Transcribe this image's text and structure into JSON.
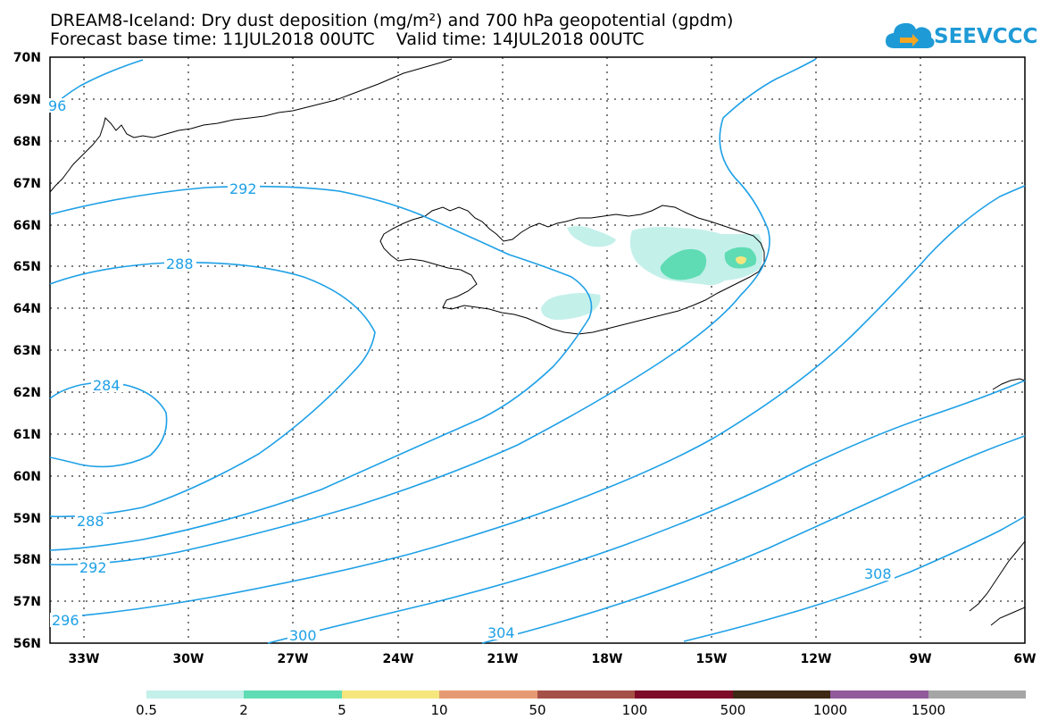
{
  "title": {
    "line1": "DREAM8-Iceland: Dry dust deposition (mg/m²) and 700 hPa geopotential (gpdm)",
    "line2": "Forecast base time: 11JUL2018 00UTC    Valid time: 14JUL2018 00UTC"
  },
  "logo": {
    "text": "SEEVCCC",
    "color": "#1e9ad6"
  },
  "map": {
    "lat_labels": [
      "70N",
      "69N",
      "68N",
      "67N",
      "66N",
      "65N",
      "64N",
      "63N",
      "62N",
      "61N",
      "60N",
      "59N",
      "58N",
      "57N",
      "56N"
    ],
    "lon_labels": [
      "33W",
      "30W",
      "27W",
      "24W",
      "21W",
      "18W",
      "15W",
      "12W",
      "9W",
      "6W"
    ],
    "lat_range": [
      56,
      70
    ],
    "lon_range": [
      -34.2,
      -6
    ],
    "grid": "dotted",
    "contour_color": "#1ea0e6",
    "contour_labels": [
      "96",
      "292",
      "288",
      "284",
      "288",
      "292",
      "296",
      "300",
      "304",
      "308"
    ]
  },
  "colorbar": {
    "labels": [
      "0.5",
      "2",
      "5",
      "10",
      "50",
      "100",
      "500",
      "1000",
      "1500"
    ],
    "colors": [
      "#c4f0ea",
      "#5fdcb4",
      "#f5e67d",
      "#e69a73",
      "#a55046",
      "#7d0a28",
      "#3c2814",
      "#915a9b",
      "#a5a5a5"
    ]
  }
}
